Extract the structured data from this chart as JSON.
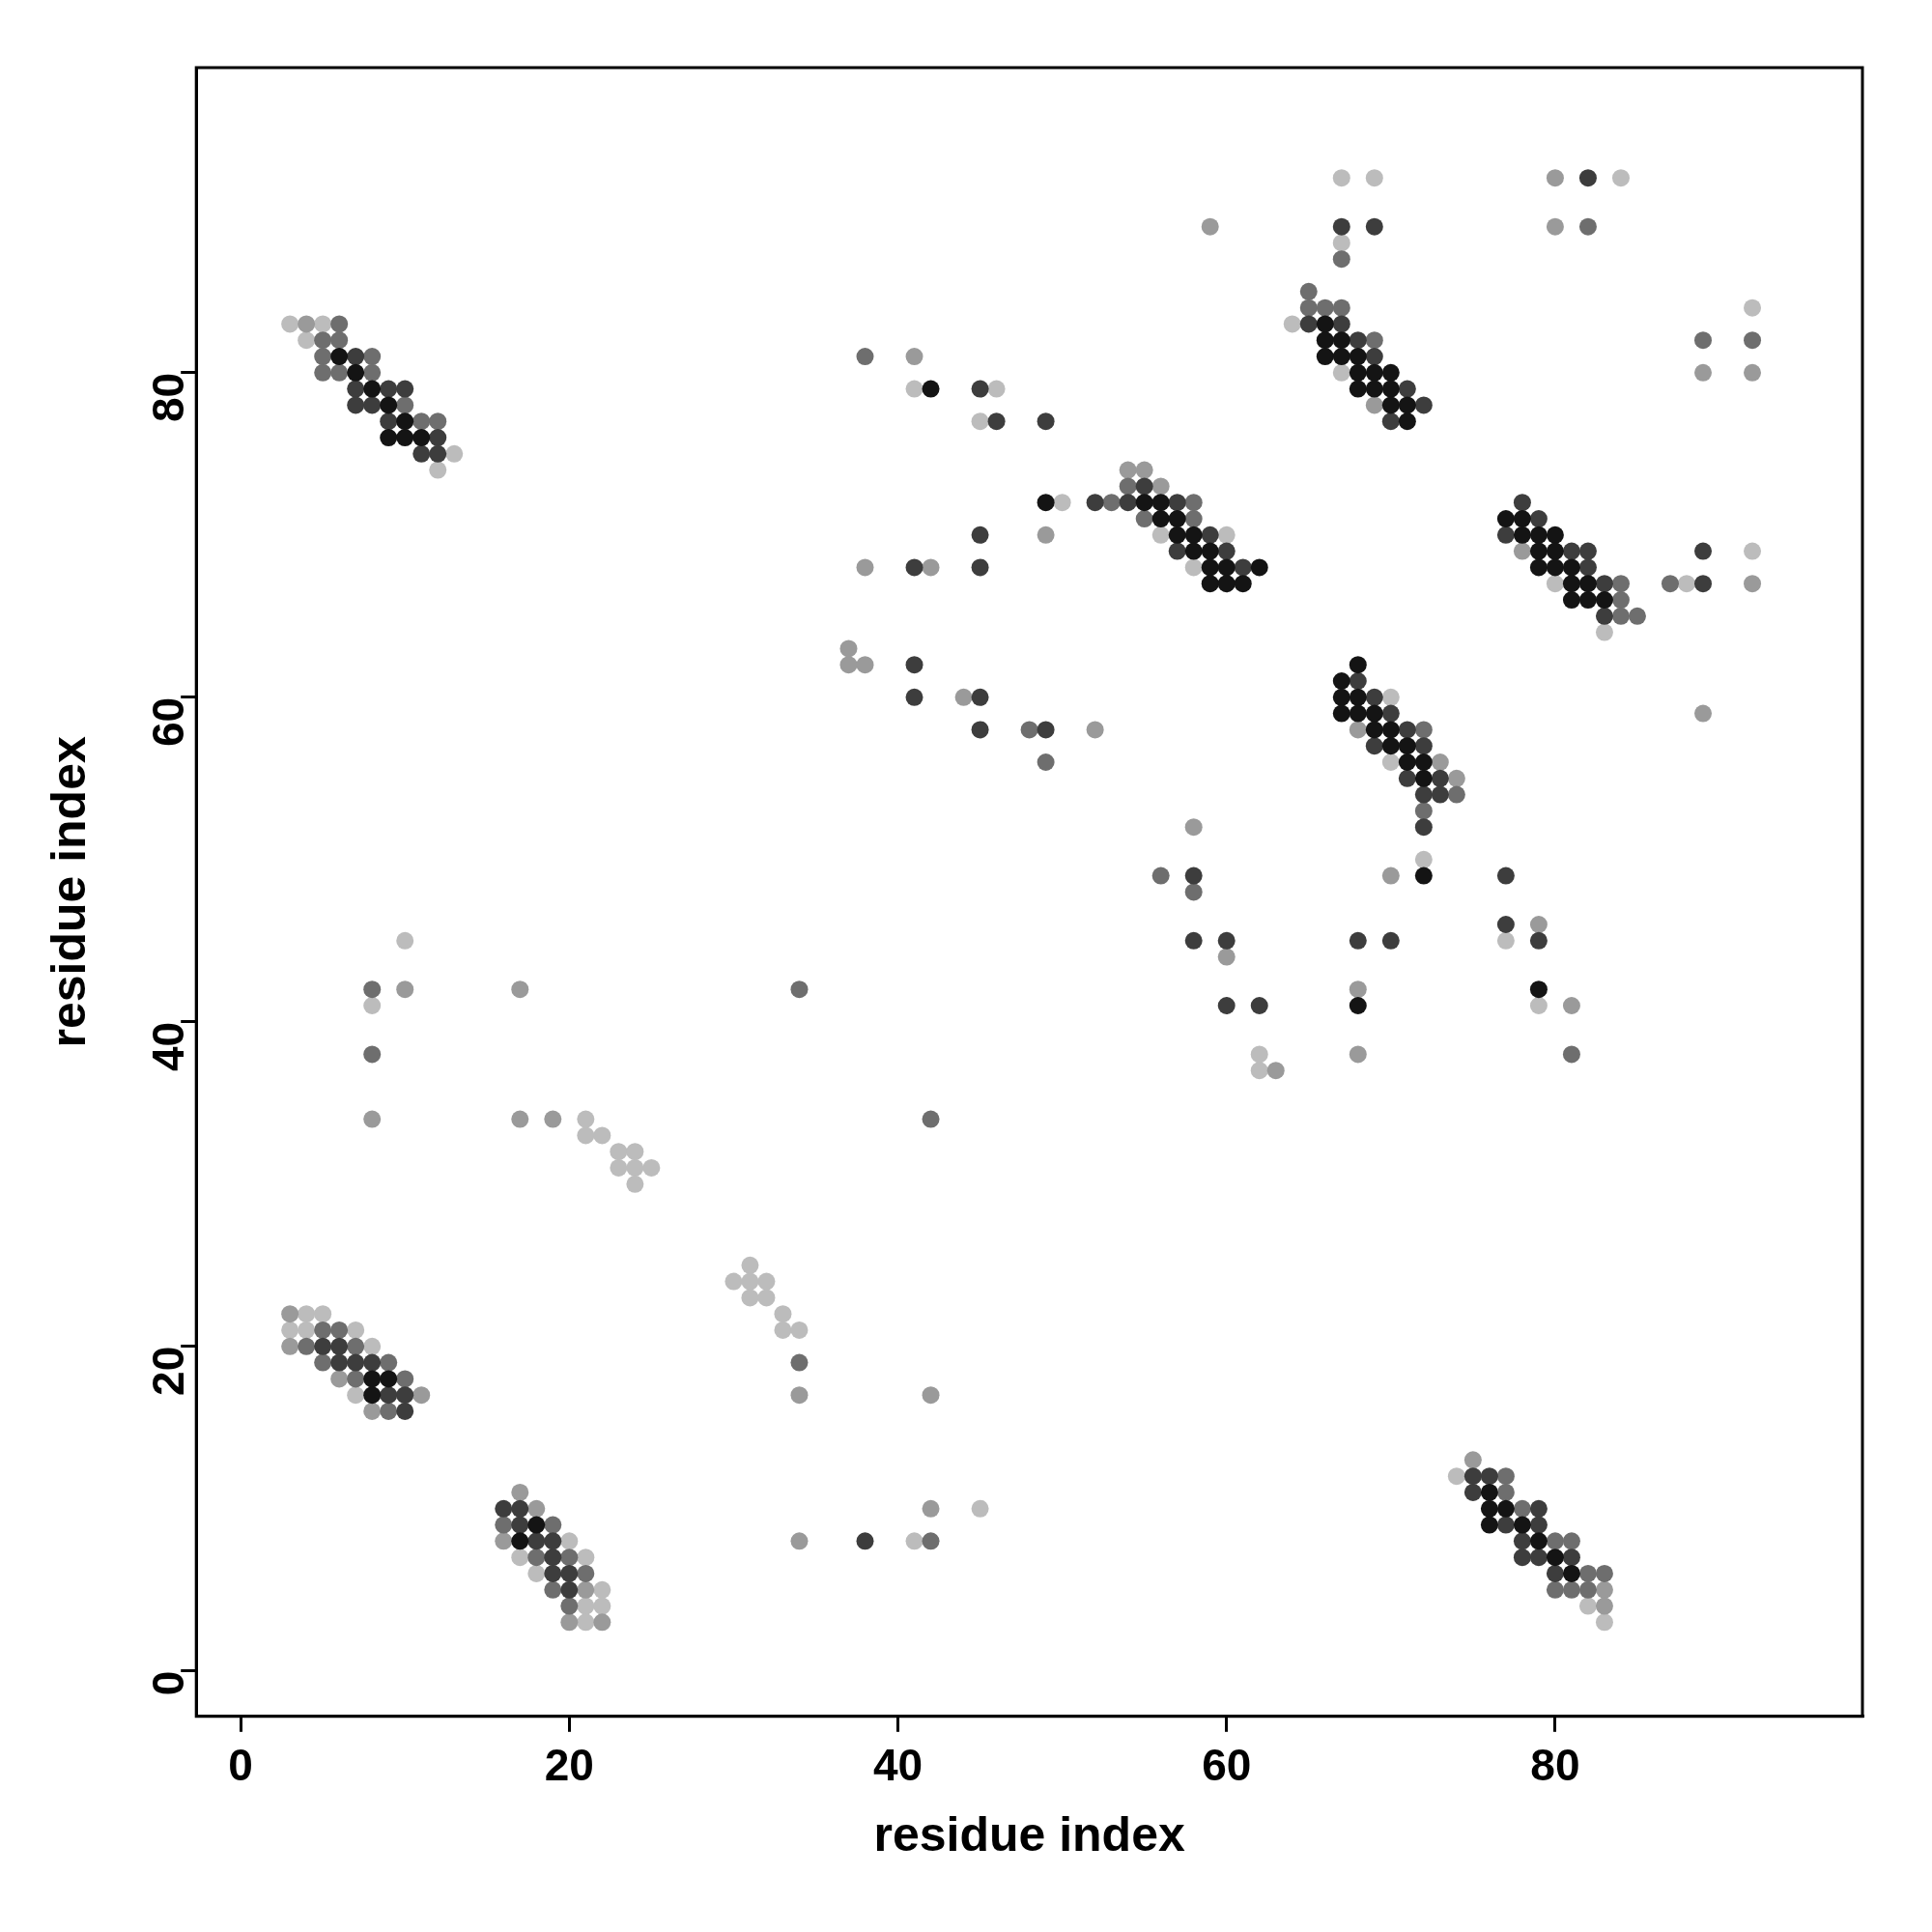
{
  "chart_data": {
    "type": "scatter",
    "xlabel": "residue index",
    "ylabel": "residue index",
    "xlim": [
      -2.7,
      98.7
    ],
    "ylim": [
      -2.8,
      98.8
    ],
    "xticks": [
      0,
      20,
      40,
      60,
      80
    ],
    "yticks": [
      0,
      20,
      40,
      60,
      80
    ],
    "marker": "circle",
    "series": [
      {
        "color": "#141414",
        "x": [
          6,
          7,
          8,
          9,
          10,
          9,
          10,
          11,
          42,
          49,
          55,
          56,
          56,
          57,
          57,
          58,
          58,
          59,
          59,
          60,
          62,
          59,
          60,
          61,
          66,
          66,
          67,
          66,
          67,
          68,
          68,
          69,
          70,
          68,
          69,
          70,
          70,
          71,
          71,
          77,
          78,
          78,
          79,
          80,
          79,
          80,
          79,
          80,
          81,
          81,
          82,
          81,
          82,
          83,
          68,
          67,
          67,
          68,
          67,
          68,
          69,
          69,
          70,
          70,
          71,
          71,
          72,
          72,
          72,
          68,
          79,
          8,
          9,
          8,
          18,
          17,
          76,
          76,
          77,
          76,
          78,
          79,
          80,
          81
        ],
        "values": [
          81,
          80,
          79,
          78,
          77,
          76,
          76,
          76,
          79,
          72,
          72,
          72,
          71,
          71,
          70,
          70,
          69,
          69,
          68,
          68,
          68,
          67,
          67,
          67,
          83,
          82,
          82,
          81,
          81,
          81,
          80,
          80,
          80,
          79,
          79,
          79,
          78,
          78,
          77,
          71,
          71,
          70,
          70,
          70,
          69,
          69,
          68,
          68,
          68,
          67,
          67,
          66,
          66,
          66,
          62,
          61,
          60,
          60,
          59,
          59,
          59,
          58,
          58,
          57,
          57,
          56,
          56,
          55,
          49,
          41,
          42,
          18,
          18,
          17,
          9,
          8,
          11,
          10,
          10,
          9,
          9,
          8,
          7,
          6
        ]
      },
      {
        "color": "#3d3d3d",
        "x": [
          7,
          7,
          9,
          10,
          7,
          8,
          9,
          12,
          11,
          12,
          52,
          54,
          57,
          55,
          59,
          57,
          60,
          61,
          65,
          67,
          68,
          69,
          71,
          72,
          70,
          78,
          79,
          77,
          81,
          82,
          82,
          83,
          83,
          68,
          69,
          70,
          71,
          69,
          72,
          71,
          73,
          72,
          73,
          72,
          77,
          82,
          67,
          69,
          89,
          89,
          45,
          46,
          49,
          45,
          41,
          45,
          41,
          41,
          45,
          45,
          49,
          58,
          58,
          60,
          60,
          62,
          77,
          79,
          68,
          70,
          38,
          5,
          6,
          6,
          7,
          8,
          9,
          10,
          10,
          16,
          17,
          17,
          18,
          19,
          19,
          19,
          20,
          20,
          75,
          76,
          75,
          79,
          77,
          79,
          78,
          78,
          79,
          81,
          80
        ],
        "values": [
          81,
          79,
          79,
          79,
          78,
          78,
          77,
          76,
          75,
          75,
          72,
          72,
          72,
          73,
          70,
          69,
          69,
          68,
          83,
          83,
          82,
          81,
          79,
          78,
          77,
          72,
          71,
          70,
          69,
          69,
          68,
          67,
          65,
          61,
          60,
          59,
          58,
          57,
          57,
          55,
          55,
          54,
          54,
          52,
          49,
          92,
          89,
          89,
          69,
          67,
          79,
          77,
          77,
          70,
          68,
          68,
          62,
          60,
          60,
          58,
          58,
          49,
          45,
          45,
          41,
          41,
          46,
          45,
          45,
          45,
          8,
          20,
          20,
          19,
          19,
          19,
          17,
          17,
          16,
          10,
          10,
          9,
          8,
          8,
          7,
          6,
          6,
          5,
          12,
          12,
          11,
          10,
          9,
          9,
          8,
          7,
          7,
          7,
          6
        ]
      },
      {
        "color": "#6e6e6e",
        "x": [
          6,
          5,
          6,
          5,
          8,
          5,
          6,
          8,
          10,
          11,
          12,
          53,
          58,
          54,
          55,
          58,
          65,
          65,
          66,
          67,
          69,
          84,
          84,
          84,
          85,
          72,
          74,
          72,
          67,
          82,
          89,
          92,
          87,
          38,
          48,
          49,
          56,
          58,
          81,
          8,
          8,
          34,
          34,
          42,
          42,
          5,
          6,
          4,
          7,
          5,
          9,
          7,
          10,
          9,
          16,
          19,
          18,
          20,
          21,
          19,
          20,
          77,
          77,
          78,
          80,
          81,
          82,
          83,
          80,
          81,
          82
        ],
        "values": [
          83,
          82,
          82,
          81,
          81,
          80,
          80,
          80,
          78,
          77,
          77,
          72,
          72,
          73,
          71,
          71,
          85,
          84,
          84,
          84,
          82,
          67,
          66,
          65,
          65,
          58,
          54,
          53,
          87,
          89,
          82,
          82,
          67,
          81,
          58,
          56,
          49,
          48,
          38,
          42,
          38,
          19,
          42,
          34,
          8,
          21,
          21,
          20,
          20,
          19,
          19,
          18,
          18,
          16,
          9,
          9,
          7,
          7,
          6,
          5,
          4,
          12,
          11,
          10,
          8,
          8,
          6,
          6,
          5,
          5,
          5
        ]
      },
      {
        "color": "#9a9a9a",
        "x": [
          4,
          54,
          55,
          56,
          69,
          78,
          68,
          73,
          74,
          70,
          80,
          80,
          59,
          89,
          92,
          92,
          89,
          41,
          49,
          38,
          42,
          37,
          37,
          38,
          44,
          52,
          58,
          60,
          63,
          79,
          68,
          81,
          68,
          10,
          17,
          8,
          17,
          19,
          34,
          42,
          42,
          34,
          3,
          3,
          6,
          11,
          8,
          17,
          18,
          16,
          21,
          20,
          22,
          75,
          83,
          83
        ],
        "values": [
          83,
          74,
          74,
          73,
          78,
          69,
          58,
          56,
          55,
          49,
          92,
          89,
          89,
          80,
          80,
          67,
          59,
          81,
          70,
          68,
          68,
          63,
          62,
          62,
          60,
          58,
          52,
          44,
          37,
          46,
          42,
          41,
          38,
          42,
          42,
          34,
          34,
          34,
          17,
          17,
          10,
          8,
          22,
          20,
          18,
          17,
          16,
          11,
          10,
          8,
          5,
          3,
          3,
          13,
          5,
          4
        ]
      },
      {
        "color": "#bcbcbc",
        "x": [
          3,
          5,
          4,
          13,
          12,
          56,
          60,
          58,
          50,
          64,
          67,
          80,
          83,
          70,
          70,
          72,
          67,
          69,
          84,
          67,
          92,
          92,
          88,
          41,
          46,
          45,
          62,
          62,
          77,
          79,
          10,
          8,
          21,
          21,
          22,
          23,
          24,
          23,
          24,
          25,
          24,
          31,
          30,
          31,
          32,
          31,
          32,
          33,
          33,
          34,
          45,
          41,
          4,
          5,
          3,
          4,
          7,
          8,
          7,
          20,
          17,
          21,
          18,
          22,
          21,
          22,
          21,
          74,
          82,
          83
        ],
        "values": [
          83,
          83,
          82,
          75,
          74,
          70,
          70,
          68,
          72,
          83,
          80,
          67,
          64,
          60,
          56,
          50,
          92,
          92,
          92,
          88,
          84,
          69,
          67,
          79,
          79,
          77,
          38,
          37,
          45,
          41,
          45,
          41,
          34,
          33,
          33,
          32,
          32,
          31,
          31,
          31,
          30,
          25,
          24,
          24,
          24,
          23,
          23,
          22,
          21,
          21,
          10,
          8,
          22,
          22,
          21,
          21,
          21,
          20,
          17,
          8,
          7,
          7,
          6,
          5,
          4,
          4,
          3,
          12,
          4,
          3
        ]
      }
    ]
  }
}
